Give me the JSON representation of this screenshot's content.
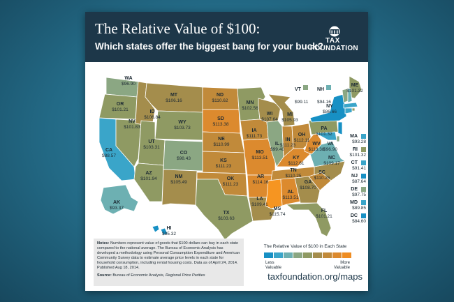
{
  "header": {
    "title": "The Relative Value of $100:",
    "subtitle": "Which states offer the biggest bang for your buck?",
    "logo_line1": "TAX",
    "logo_line2": "FOUNDATION"
  },
  "colors": {
    "header_bg": "#1d3749",
    "scale": [
      "#1790c4",
      "#3aa5c9",
      "#6db0b2",
      "#8ba783",
      "#8f9a63",
      "#a48d4c",
      "#c18a3a",
      "#dc8a2e",
      "#ef8d22",
      "#f69521"
    ],
    "least_value": "#1790c4",
    "most_value": "#f69521"
  },
  "states": [
    {
      "abbr": "WA",
      "value": "$96.90",
      "color": "#8ba783"
    },
    {
      "abbr": "OR",
      "value": "$101.21",
      "color": "#8f9a63"
    },
    {
      "abbr": "CA",
      "value": "$88.57",
      "color": "#3aa5c9"
    },
    {
      "abbr": "NV",
      "value": "$101.83",
      "color": "#8f9a63"
    },
    {
      "abbr": "ID",
      "value": "$106.84",
      "color": "#a48d4c"
    },
    {
      "abbr": "MT",
      "value": "$106.16",
      "color": "#a48d4c"
    },
    {
      "abbr": "WY",
      "value": "$103.73",
      "color": "#8f9a63"
    },
    {
      "abbr": "UT",
      "value": "$103.31",
      "color": "#8f9a63"
    },
    {
      "abbr": "AZ",
      "value": "$101.94",
      "color": "#8f9a63"
    },
    {
      "abbr": "CO",
      "value": "$98.43",
      "color": "#8ba783"
    },
    {
      "abbr": "NM",
      "value": "$105.49",
      "color": "#a48d4c"
    },
    {
      "abbr": "ND",
      "value": "$110.62",
      "color": "#c18a3a"
    },
    {
      "abbr": "SD",
      "value": "$113.38",
      "color": "#dc8a2e"
    },
    {
      "abbr": "NE",
      "value": "$110.99",
      "color": "#c18a3a"
    },
    {
      "abbr": "KS",
      "value": "$111.23",
      "color": "#c18a3a"
    },
    {
      "abbr": "OK",
      "value": "$111.23",
      "color": "#c18a3a"
    },
    {
      "abbr": "TX",
      "value": "$103.63",
      "color": "#8f9a63"
    },
    {
      "abbr": "MN",
      "value": "$102.56",
      "color": "#8f9a63"
    },
    {
      "abbr": "IA",
      "value": "$111.73",
      "color": "#c18a3a"
    },
    {
      "abbr": "MO",
      "value": "$113.51",
      "color": "#dc8a2e"
    },
    {
      "abbr": "AR",
      "value": "$114.16",
      "color": "#dc8a2e"
    },
    {
      "abbr": "LA",
      "value": "$109.41",
      "color": "#a48d4c"
    },
    {
      "abbr": "WI",
      "value": "$107.64",
      "color": "#a48d4c"
    },
    {
      "abbr": "IL",
      "value": "$99.40",
      "color": "#8ba783"
    },
    {
      "abbr": "MI",
      "value": "$105.93",
      "color": "#a48d4c"
    },
    {
      "abbr": "IN",
      "value": "$111.23",
      "color": "#c18a3a"
    },
    {
      "abbr": "OH",
      "value": "$112.11",
      "color": "#c18a3a"
    },
    {
      "abbr": "KY",
      "value": "$112.61",
      "color": "#dc8a2e"
    },
    {
      "abbr": "TN",
      "value": "$110.25",
      "color": "#c18a3a"
    },
    {
      "abbr": "MS",
      "value": "$115.74",
      "color": "#f69521"
    },
    {
      "abbr": "AL",
      "value": "$113.51",
      "color": "#dc8a2e"
    },
    {
      "abbr": "GA",
      "value": "$108.70",
      "color": "#a48d4c"
    },
    {
      "abbr": "FL",
      "value": "$101.21",
      "color": "#8f9a63"
    },
    {
      "abbr": "SC",
      "value": "$110.25",
      "color": "#c18a3a"
    },
    {
      "abbr": "NC",
      "value": "$109.17",
      "color": "#a48d4c"
    },
    {
      "abbr": "VA",
      "value": "$96.90",
      "color": "#6db0b2"
    },
    {
      "abbr": "WV",
      "value": "$113.38",
      "color": "#dc8a2e"
    },
    {
      "abbr": "PA",
      "value": "$101.32",
      "color": "#8f9a63"
    },
    {
      "abbr": "NY",
      "value": "$86.66",
      "color": "#1790c4"
    },
    {
      "abbr": "ME",
      "value": "$101.32",
      "color": "#8f9a63"
    },
    {
      "abbr": "AK",
      "value": "$93.37",
      "color": "#6db0b2"
    },
    {
      "abbr": "HI",
      "value": "$85.32",
      "color": "#1790c4"
    }
  ],
  "small_states_top": [
    {
      "abbr": "VT",
      "value": "$99.11",
      "color": "#8ba783"
    },
    {
      "abbr": "NH",
      "value": "$94.16",
      "color": "#6db0b2"
    }
  ],
  "small_states_side": [
    {
      "abbr": "MA",
      "value": "$93.28",
      "color": "#3aa5c9"
    },
    {
      "abbr": "RI",
      "value": "$101.32",
      "color": "#8f9a63"
    },
    {
      "abbr": "CT",
      "value": "$91.41",
      "color": "#3aa5c9"
    },
    {
      "abbr": "NJ",
      "value": "$87.64",
      "color": "#1790c4"
    },
    {
      "abbr": "DE",
      "value": "$97.75",
      "color": "#8ba783"
    },
    {
      "abbr": "MD",
      "value": "$89.85",
      "color": "#3aa5c9"
    },
    {
      "abbr": "DC",
      "value": "$84.60",
      "color": "#1790c4"
    }
  ],
  "notes": {
    "label": "Notes:",
    "text": "Numbers represent value of goods that $100 dollars can buy in each state compared to the national average. The Bureau of Economic Analysis has developed a methodology using Personal Consumption Expenditure and American Community Survey data to estimate average price levels in each state for household consumption, including rental housing costs.  Data as of April 24, 2014. Published Aug 18, 2014.",
    "source_label": "Source:",
    "source_text": "Bureau of Economic Analysis,",
    "source_italic": "Regional Price Parities"
  },
  "legend": {
    "title": "The Relative Value of $100 in Each State",
    "less_line1": "Less",
    "less_line2": "Valuable",
    "more_line1": "More",
    "more_line2": "Valuable"
  },
  "url": "taxfoundation.org/maps"
}
